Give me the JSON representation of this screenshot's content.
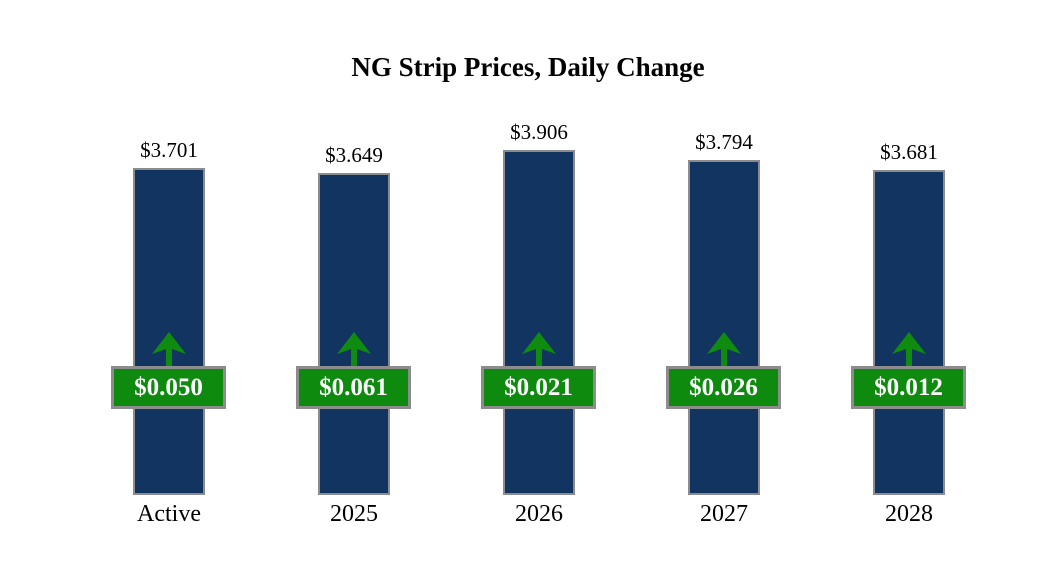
{
  "title": "NG Strip Prices, Daily Change",
  "colors": {
    "bar_fill": "#113560",
    "bar_border": "#8c8c8c",
    "badge_fill": "#0e8a0e",
    "badge_border": "#8c8c8c",
    "badge_text": "#ffffff",
    "arrow_green": "#0f8b0f",
    "label_text": "#000000",
    "background": "#ffffff"
  },
  "chart_data": {
    "type": "bar",
    "title": "NG Strip Prices, Daily Change",
    "categories": [
      "Active",
      "2025",
      "2026",
      "2027",
      "2028"
    ],
    "series": [
      {
        "name": "strip_price_usd",
        "values": [
          3.701,
          3.649,
          3.906,
          3.794,
          3.681
        ]
      },
      {
        "name": "daily_change_usd",
        "values": [
          0.05,
          0.061,
          0.021,
          0.026,
          0.012
        ]
      }
    ],
    "value_labels": [
      "$3.701",
      "$3.649",
      "$3.906",
      "$3.794",
      "$3.681"
    ],
    "change_labels": [
      "$0.050",
      "$0.061",
      "$0.021",
      "$0.026",
      "$0.012"
    ],
    "change_direction": "up",
    "ylim": [
      0,
      4.0
    ],
    "grid": false,
    "legend": "none",
    "xlabel": "",
    "ylabel": ""
  },
  "bars": [
    {
      "category": "Active",
      "price_label": "$3.701",
      "change_label": "$0.050"
    },
    {
      "category": "2025",
      "price_label": "$3.649",
      "change_label": "$0.061"
    },
    {
      "category": "2026",
      "price_label": "$3.906",
      "change_label": "$0.021"
    },
    {
      "category": "2027",
      "price_label": "$3.794",
      "change_label": "$0.026"
    },
    {
      "category": "2028",
      "price_label": "$3.681",
      "change_label": "$0.012"
    }
  ]
}
